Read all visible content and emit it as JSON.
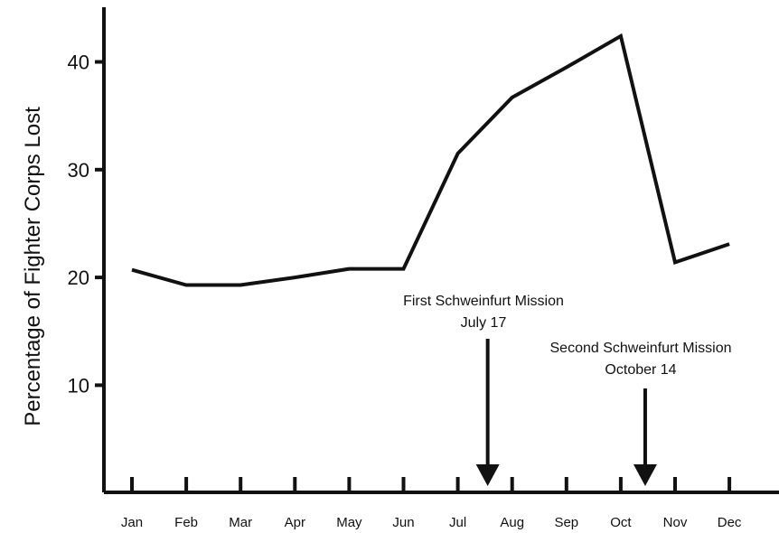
{
  "chart_data": {
    "type": "line",
    "title": "",
    "xlabel": "",
    "ylabel": "Percentage of Fighter  Corps Lost",
    "categories": [
      "Jan",
      "Feb",
      "Mar",
      "Apr",
      "May",
      "Jun",
      "Jul",
      "Aug",
      "Sep",
      "Oct",
      "Nov",
      "Dec"
    ],
    "series": [
      {
        "values": [
          20.7,
          19.3,
          19.3,
          20.0,
          20.8,
          20.8,
          31.5,
          36.7,
          39.5,
          42.4,
          21.4,
          23.1
        ]
      }
    ],
    "yticks": [
      10,
      20,
      30,
      40
    ],
    "ylim": [
      0,
      45
    ],
    "grid": false,
    "annotations": [
      {
        "line1": "First Schweinfurt Mission",
        "line2": "July 17",
        "x": 7.55
      },
      {
        "line1": "Second Schweinfurt Mission",
        "line2": "October 14",
        "x": 10.45
      }
    ]
  }
}
